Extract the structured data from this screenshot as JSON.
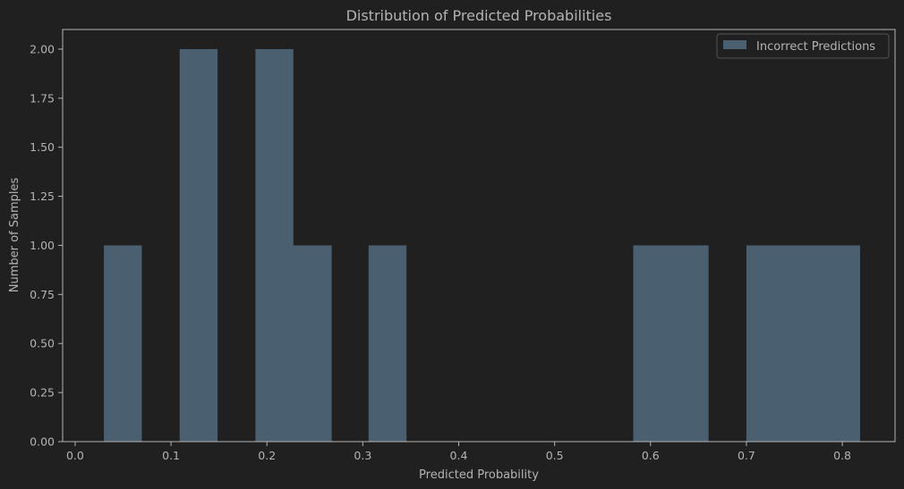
{
  "chart_data": {
    "type": "bar",
    "title": "Distribution of Predicted Probabilities",
    "xlabel": "Predicted Probability",
    "ylabel": "Number of Samples",
    "xlim": [
      -0.013,
      0.855
    ],
    "ylim": [
      0,
      2.1
    ],
    "xticks": [
      0.0,
      0.1,
      0.2,
      0.3,
      0.4,
      0.5,
      0.6,
      0.7,
      0.8
    ],
    "xtick_labels": [
      "0.0",
      "0.1",
      "0.2",
      "0.3",
      "0.4",
      "0.5",
      "0.6",
      "0.7",
      "0.8"
    ],
    "yticks": [
      0,
      0.25,
      0.5,
      0.75,
      1.0,
      1.25,
      1.5,
      1.75,
      2.0
    ],
    "ytick_labels": [
      "0.00",
      "0.25",
      "0.50",
      "0.75",
      "1.00",
      "1.25",
      "1.50",
      "1.75",
      "2.00"
    ],
    "bin_edges": [
      0.03,
      0.069,
      0.109,
      0.148,
      0.188,
      0.227,
      0.267,
      0.306,
      0.345,
      0.385,
      0.424,
      0.463,
      0.503,
      0.542,
      0.582,
      0.621,
      0.66,
      0.7,
      0.739,
      0.778,
      0.818
    ],
    "counts": [
      1,
      0,
      2,
      0,
      2,
      1,
      0,
      1,
      0,
      0,
      0,
      0,
      0,
      0,
      1,
      1,
      0,
      1,
      1,
      1
    ],
    "series": [
      {
        "name": "Incorrect Predictions",
        "color": "#4a5f70"
      }
    ],
    "legend_position": "upper right",
    "grid": false
  }
}
